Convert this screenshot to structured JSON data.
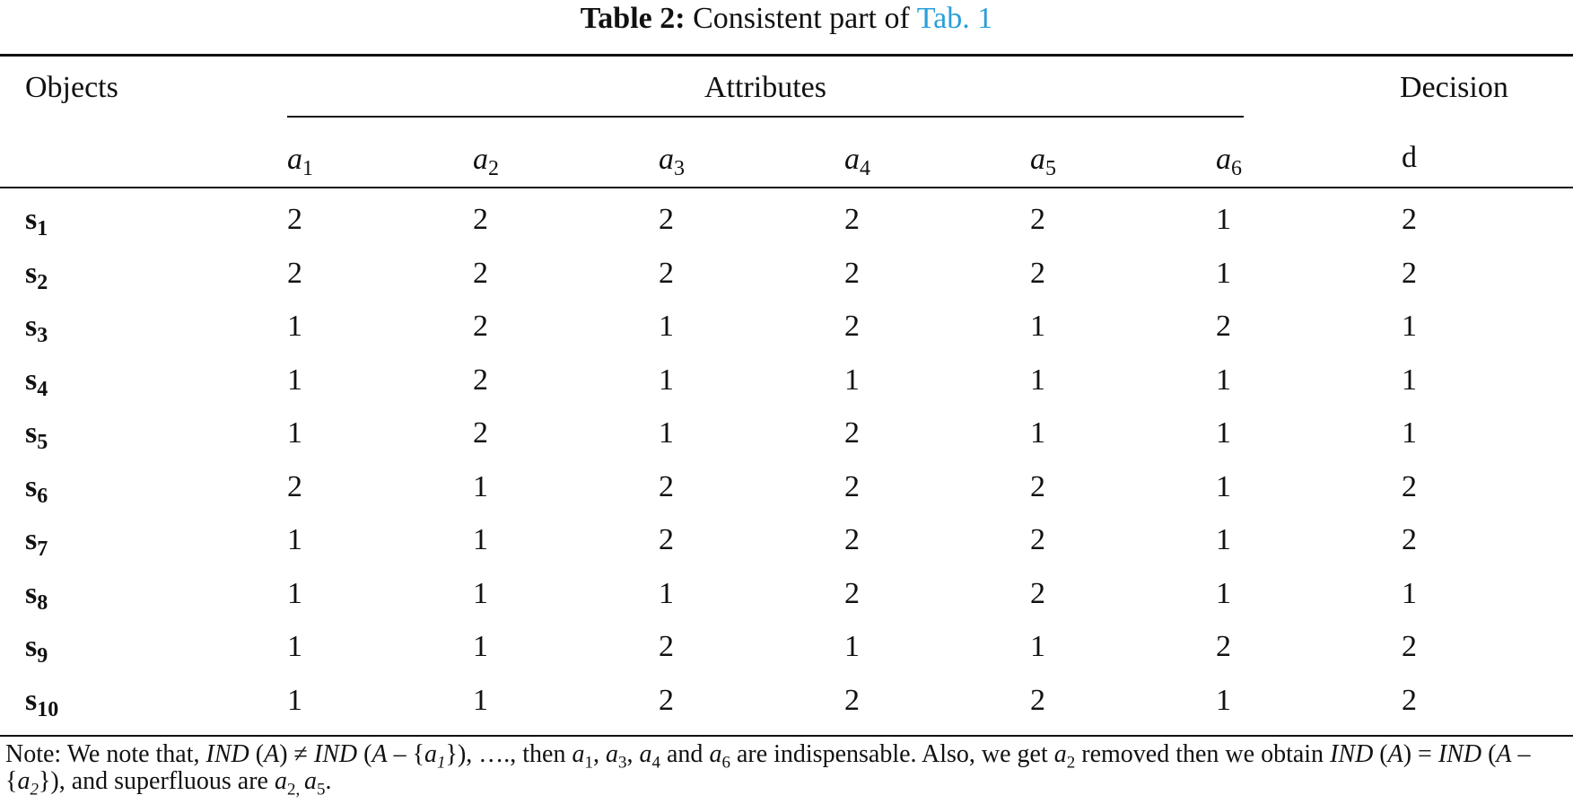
{
  "caption": {
    "label": "Table 2:",
    "text": "Consistent part of",
    "link": "Tab. 1"
  },
  "header": {
    "objects": "Objects",
    "attributes": "Attributes",
    "decision": "Decision",
    "attribute_names": [
      {
        "base": "a",
        "sub": "1"
      },
      {
        "base": "a",
        "sub": "2"
      },
      {
        "base": "a",
        "sub": "3"
      },
      {
        "base": "a",
        "sub": "4"
      },
      {
        "base": "a",
        "sub": "5"
      },
      {
        "base": "a",
        "sub": "6"
      }
    ],
    "decision_name": "d"
  },
  "rows": [
    {
      "object": {
        "base": "s",
        "sub": "1"
      },
      "values": [
        2,
        2,
        2,
        2,
        2,
        1
      ],
      "decision": 2
    },
    {
      "object": {
        "base": "s",
        "sub": "2"
      },
      "values": [
        2,
        2,
        2,
        2,
        2,
        1
      ],
      "decision": 2
    },
    {
      "object": {
        "base": "s",
        "sub": "3"
      },
      "values": [
        1,
        2,
        1,
        2,
        1,
        2
      ],
      "decision": 1
    },
    {
      "object": {
        "base": "s",
        "sub": "4"
      },
      "values": [
        1,
        2,
        1,
        1,
        1,
        1
      ],
      "decision": 1
    },
    {
      "object": {
        "base": "s",
        "sub": "5"
      },
      "values": [
        1,
        2,
        1,
        2,
        1,
        1
      ],
      "decision": 1
    },
    {
      "object": {
        "base": "s",
        "sub": "6"
      },
      "values": [
        2,
        1,
        2,
        2,
        2,
        1
      ],
      "decision": 2
    },
    {
      "object": {
        "base": "s",
        "sub": "7"
      },
      "values": [
        1,
        1,
        2,
        2,
        2,
        1
      ],
      "decision": 2
    },
    {
      "object": {
        "base": "s",
        "sub": "8"
      },
      "values": [
        1,
        1,
        1,
        2,
        2,
        1
      ],
      "decision": 1
    },
    {
      "object": {
        "base": "s",
        "sub": "9"
      },
      "values": [
        1,
        1,
        2,
        1,
        1,
        2
      ],
      "decision": 2
    },
    {
      "object": {
        "base": "s",
        "sub": "10"
      },
      "values": [
        1,
        1,
        2,
        2,
        2,
        1
      ],
      "decision": 2
    }
  ],
  "note": {
    "parts": [
      "Note: We note that, ",
      "IND",
      " (",
      "A",
      ") ≠ ",
      "IND",
      " (",
      "A",
      " – {",
      "a",
      "1",
      "}), …., then ",
      "a",
      "1",
      ", ",
      "a",
      "3",
      ", ",
      "a",
      "4",
      " and ",
      "a",
      "6",
      " are indispensable. Also, we get ",
      "a",
      "2",
      " removed then we obtain ",
      "IND",
      " (",
      "A",
      ") = ",
      "IND",
      " (",
      "A",
      " – {",
      "a",
      "2",
      "}), and superfluous are ",
      "a",
      "2, ",
      "a",
      "5",
      "."
    ]
  }
}
